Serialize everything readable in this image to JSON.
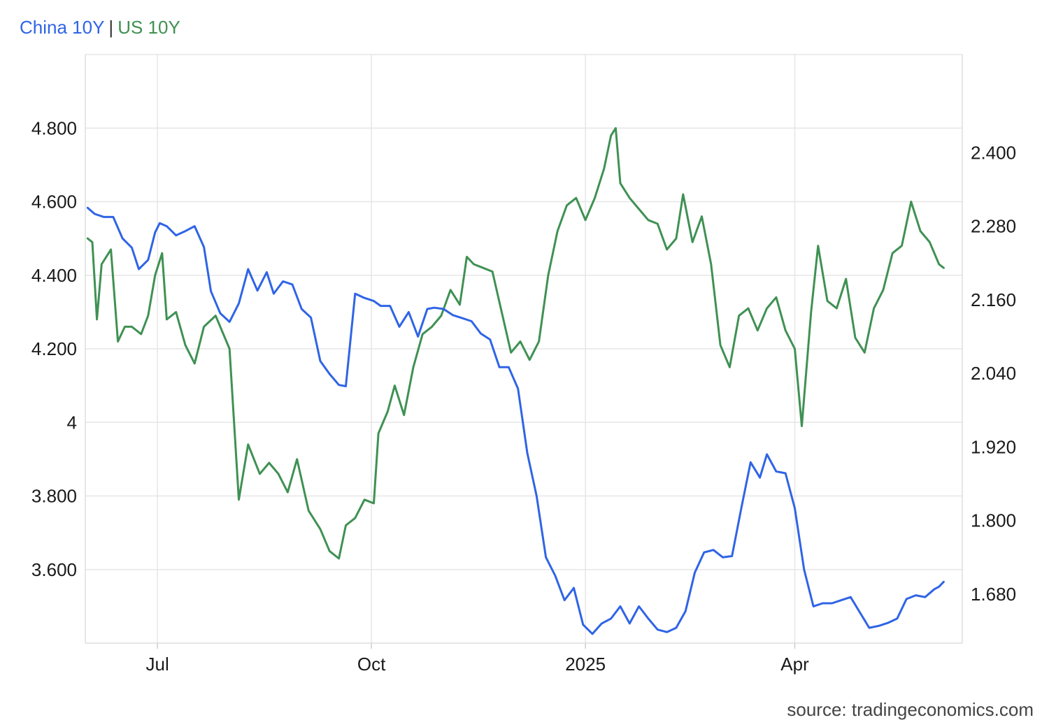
{
  "legend": {
    "series_a": "China 10Y",
    "separator": "|",
    "series_b": "US 10Y"
  },
  "source": "source: tradingeconomics.com",
  "colors": {
    "china": "#2f64e6",
    "us": "#3f9153",
    "grid": "#e6e6e6"
  },
  "chart_data": {
    "type": "line",
    "x_type": "date",
    "x_ticks": [
      {
        "date": "2024-07-01",
        "label": "Jul"
      },
      {
        "date": "2024-10-01",
        "label": "Oct"
      },
      {
        "date": "2025-01-01",
        "label": "2025"
      },
      {
        "date": "2025-04-01",
        "label": "Apr"
      }
    ],
    "xlim": [
      "2024-05-31",
      "2025-06-12"
    ],
    "left_axis": {
      "ylim": [
        3.4,
        5.0
      ],
      "ticks": [
        3.6,
        3.8,
        4.0,
        4.2,
        4.4,
        4.6,
        4.8
      ],
      "tick_labels": [
        "3.600",
        "3.800",
        "4",
        "4.200",
        "4.400",
        "4.600",
        "4.800"
      ]
    },
    "right_axis": {
      "ylim": [
        1.6,
        2.56
      ],
      "ticks": [
        1.68,
        1.8,
        1.92,
        2.04,
        2.16,
        2.28,
        2.4
      ],
      "tick_labels": [
        "1.680",
        "1.800",
        "1.920",
        "2.040",
        "2.160",
        "2.280",
        "2.400"
      ]
    },
    "grid": true,
    "series": [
      {
        "name": "US 10Y",
        "axis": "left",
        "points": [
          [
            "2024-06-01",
            4.5
          ],
          [
            "2024-06-03",
            4.49
          ],
          [
            "2024-06-05",
            4.28
          ],
          [
            "2024-06-07",
            4.43
          ],
          [
            "2024-06-11",
            4.47
          ],
          [
            "2024-06-14",
            4.22
          ],
          [
            "2024-06-17",
            4.26
          ],
          [
            "2024-06-20",
            4.26
          ],
          [
            "2024-06-24",
            4.24
          ],
          [
            "2024-06-27",
            4.29
          ],
          [
            "2024-06-30",
            4.4
          ],
          [
            "2024-07-03",
            4.46
          ],
          [
            "2024-07-05",
            4.28
          ],
          [
            "2024-07-09",
            4.3
          ],
          [
            "2024-07-13",
            4.21
          ],
          [
            "2024-07-17",
            4.16
          ],
          [
            "2024-07-21",
            4.26
          ],
          [
            "2024-07-26",
            4.29
          ],
          [
            "2024-08-01",
            4.2
          ],
          [
            "2024-08-05",
            3.79
          ],
          [
            "2024-08-09",
            3.94
          ],
          [
            "2024-08-14",
            3.86
          ],
          [
            "2024-08-18",
            3.89
          ],
          [
            "2024-08-22",
            3.86
          ],
          [
            "2024-08-26",
            3.81
          ],
          [
            "2024-08-30",
            3.9
          ],
          [
            "2024-09-04",
            3.76
          ],
          [
            "2024-09-09",
            3.71
          ],
          [
            "2024-09-13",
            3.65
          ],
          [
            "2024-09-17",
            3.63
          ],
          [
            "2024-09-20",
            3.72
          ],
          [
            "2024-09-24",
            3.74
          ],
          [
            "2024-09-28",
            3.79
          ],
          [
            "2024-10-02",
            3.78
          ],
          [
            "2024-10-04",
            3.97
          ],
          [
            "2024-10-08",
            4.03
          ],
          [
            "2024-10-11",
            4.1
          ],
          [
            "2024-10-15",
            4.02
          ],
          [
            "2024-10-19",
            4.15
          ],
          [
            "2024-10-23",
            4.24
          ],
          [
            "2024-10-27",
            4.26
          ],
          [
            "2024-10-31",
            4.29
          ],
          [
            "2024-11-04",
            4.36
          ],
          [
            "2024-11-08",
            4.32
          ],
          [
            "2024-11-11",
            4.45
          ],
          [
            "2024-11-14",
            4.43
          ],
          [
            "2024-11-18",
            4.42
          ],
          [
            "2024-11-22",
            4.41
          ],
          [
            "2024-11-26",
            4.3
          ],
          [
            "2024-11-30",
            4.19
          ],
          [
            "2024-12-04",
            4.22
          ],
          [
            "2024-12-08",
            4.17
          ],
          [
            "2024-12-12",
            4.22
          ],
          [
            "2024-12-16",
            4.4
          ],
          [
            "2024-12-20",
            4.52
          ],
          [
            "2024-12-24",
            4.59
          ],
          [
            "2024-12-28",
            4.61
          ],
          [
            "2025-01-01",
            4.55
          ],
          [
            "2025-01-05",
            4.61
          ],
          [
            "2025-01-09",
            4.69
          ],
          [
            "2025-01-12",
            4.78
          ],
          [
            "2025-01-14",
            4.8
          ],
          [
            "2025-01-16",
            4.65
          ],
          [
            "2025-01-20",
            4.61
          ],
          [
            "2025-01-24",
            4.58
          ],
          [
            "2025-01-28",
            4.55
          ],
          [
            "2025-02-01",
            4.54
          ],
          [
            "2025-02-05",
            4.47
          ],
          [
            "2025-02-09",
            4.5
          ],
          [
            "2025-02-12",
            4.62
          ],
          [
            "2025-02-16",
            4.49
          ],
          [
            "2025-02-20",
            4.56
          ],
          [
            "2025-02-24",
            4.43
          ],
          [
            "2025-02-28",
            4.21
          ],
          [
            "2025-03-04",
            4.15
          ],
          [
            "2025-03-08",
            4.29
          ],
          [
            "2025-03-12",
            4.31
          ],
          [
            "2025-03-16",
            4.25
          ],
          [
            "2025-03-20",
            4.31
          ],
          [
            "2025-03-24",
            4.34
          ],
          [
            "2025-03-28",
            4.25
          ],
          [
            "2025-04-01",
            4.2
          ],
          [
            "2025-04-04",
            3.99
          ],
          [
            "2025-04-08",
            4.3
          ],
          [
            "2025-04-11",
            4.48
          ],
          [
            "2025-04-15",
            4.33
          ],
          [
            "2025-04-19",
            4.31
          ],
          [
            "2025-04-23",
            4.39
          ],
          [
            "2025-04-27",
            4.23
          ],
          [
            "2025-05-01",
            4.19
          ],
          [
            "2025-05-05",
            4.31
          ],
          [
            "2025-05-09",
            4.36
          ],
          [
            "2025-05-13",
            4.46
          ],
          [
            "2025-05-17",
            4.48
          ],
          [
            "2025-05-21",
            4.6
          ],
          [
            "2025-05-25",
            4.52
          ],
          [
            "2025-05-29",
            4.49
          ],
          [
            "2025-06-02",
            4.43
          ],
          [
            "2025-06-04",
            4.42
          ]
        ]
      },
      {
        "name": "China 10Y",
        "axis": "right",
        "points": [
          [
            "2024-06-01",
            2.31
          ],
          [
            "2024-06-04",
            2.3
          ],
          [
            "2024-06-08",
            2.295
          ],
          [
            "2024-06-12",
            2.295
          ],
          [
            "2024-06-16",
            2.26
          ],
          [
            "2024-06-20",
            2.245
          ],
          [
            "2024-06-23",
            2.21
          ],
          [
            "2024-06-27",
            2.225
          ],
          [
            "2024-06-30",
            2.27
          ],
          [
            "2024-07-02",
            2.285
          ],
          [
            "2024-07-05",
            2.28
          ],
          [
            "2024-07-09",
            2.265
          ],
          [
            "2024-07-13",
            2.272
          ],
          [
            "2024-07-17",
            2.28
          ],
          [
            "2024-07-21",
            2.246
          ],
          [
            "2024-07-24",
            2.174
          ],
          [
            "2024-07-28",
            2.138
          ],
          [
            "2024-08-01",
            2.124
          ],
          [
            "2024-08-05",
            2.154
          ],
          [
            "2024-08-09",
            2.21
          ],
          [
            "2024-08-13",
            2.175
          ],
          [
            "2024-08-17",
            2.205
          ],
          [
            "2024-08-20",
            2.17
          ],
          [
            "2024-08-24",
            2.19
          ],
          [
            "2024-08-28",
            2.185
          ],
          [
            "2024-09-01",
            2.145
          ],
          [
            "2024-09-05",
            2.131
          ],
          [
            "2024-09-09",
            2.06
          ],
          [
            "2024-09-13",
            2.039
          ],
          [
            "2024-09-17",
            2.021
          ],
          [
            "2024-09-20",
            2.019
          ],
          [
            "2024-09-24",
            2.17
          ],
          [
            "2024-09-28",
            2.163
          ],
          [
            "2024-10-02",
            2.158
          ],
          [
            "2024-10-05",
            2.15
          ],
          [
            "2024-10-09",
            2.15
          ],
          [
            "2024-10-13",
            2.116
          ],
          [
            "2024-10-17",
            2.14
          ],
          [
            "2024-10-21",
            2.1
          ],
          [
            "2024-10-25",
            2.145
          ],
          [
            "2024-10-28",
            2.147
          ],
          [
            "2024-11-01",
            2.145
          ],
          [
            "2024-11-05",
            2.135
          ],
          [
            "2024-11-09",
            2.13
          ],
          [
            "2024-11-13",
            2.125
          ],
          [
            "2024-11-17",
            2.105
          ],
          [
            "2024-11-21",
            2.095
          ],
          [
            "2024-11-25",
            2.05
          ],
          [
            "2024-11-29",
            2.05
          ],
          [
            "2024-12-03",
            2.015
          ],
          [
            "2024-12-07",
            1.91
          ],
          [
            "2024-12-11",
            1.84
          ],
          [
            "2024-12-15",
            1.74
          ],
          [
            "2024-12-19",
            1.71
          ],
          [
            "2024-12-23",
            1.67
          ],
          [
            "2024-12-27",
            1.69
          ],
          [
            "2024-12-31",
            1.63
          ],
          [
            "2025-01-04",
            1.615
          ],
          [
            "2025-01-08",
            1.632
          ],
          [
            "2025-01-12",
            1.64
          ],
          [
            "2025-01-16",
            1.66
          ],
          [
            "2025-01-20",
            1.632
          ],
          [
            "2025-01-24",
            1.66
          ],
          [
            "2025-01-28",
            1.64
          ],
          [
            "2025-02-01",
            1.622
          ],
          [
            "2025-02-05",
            1.618
          ],
          [
            "2025-02-09",
            1.625
          ],
          [
            "2025-02-13",
            1.652
          ],
          [
            "2025-02-17",
            1.715
          ],
          [
            "2025-02-21",
            1.748
          ],
          [
            "2025-02-25",
            1.752
          ],
          [
            "2025-03-01",
            1.74
          ],
          [
            "2025-03-05",
            1.742
          ],
          [
            "2025-03-09",
            1.82
          ],
          [
            "2025-03-13",
            1.895
          ],
          [
            "2025-03-17",
            1.87
          ],
          [
            "2025-03-20",
            1.908
          ],
          [
            "2025-03-24",
            1.88
          ],
          [
            "2025-03-28",
            1.877
          ],
          [
            "2025-04-01",
            1.82
          ],
          [
            "2025-04-05",
            1.72
          ],
          [
            "2025-04-09",
            1.66
          ],
          [
            "2025-04-13",
            1.665
          ],
          [
            "2025-04-17",
            1.665
          ],
          [
            "2025-04-21",
            1.67
          ],
          [
            "2025-04-25",
            1.675
          ],
          [
            "2025-04-29",
            1.65
          ],
          [
            "2025-05-03",
            1.625
          ],
          [
            "2025-05-07",
            1.628
          ],
          [
            "2025-05-11",
            1.633
          ],
          [
            "2025-05-15",
            1.64
          ],
          [
            "2025-05-19",
            1.672
          ],
          [
            "2025-05-23",
            1.678
          ],
          [
            "2025-05-27",
            1.675
          ],
          [
            "2025-05-31",
            1.688
          ],
          [
            "2025-06-02",
            1.692
          ],
          [
            "2025-06-04",
            1.7
          ]
        ]
      }
    ]
  }
}
